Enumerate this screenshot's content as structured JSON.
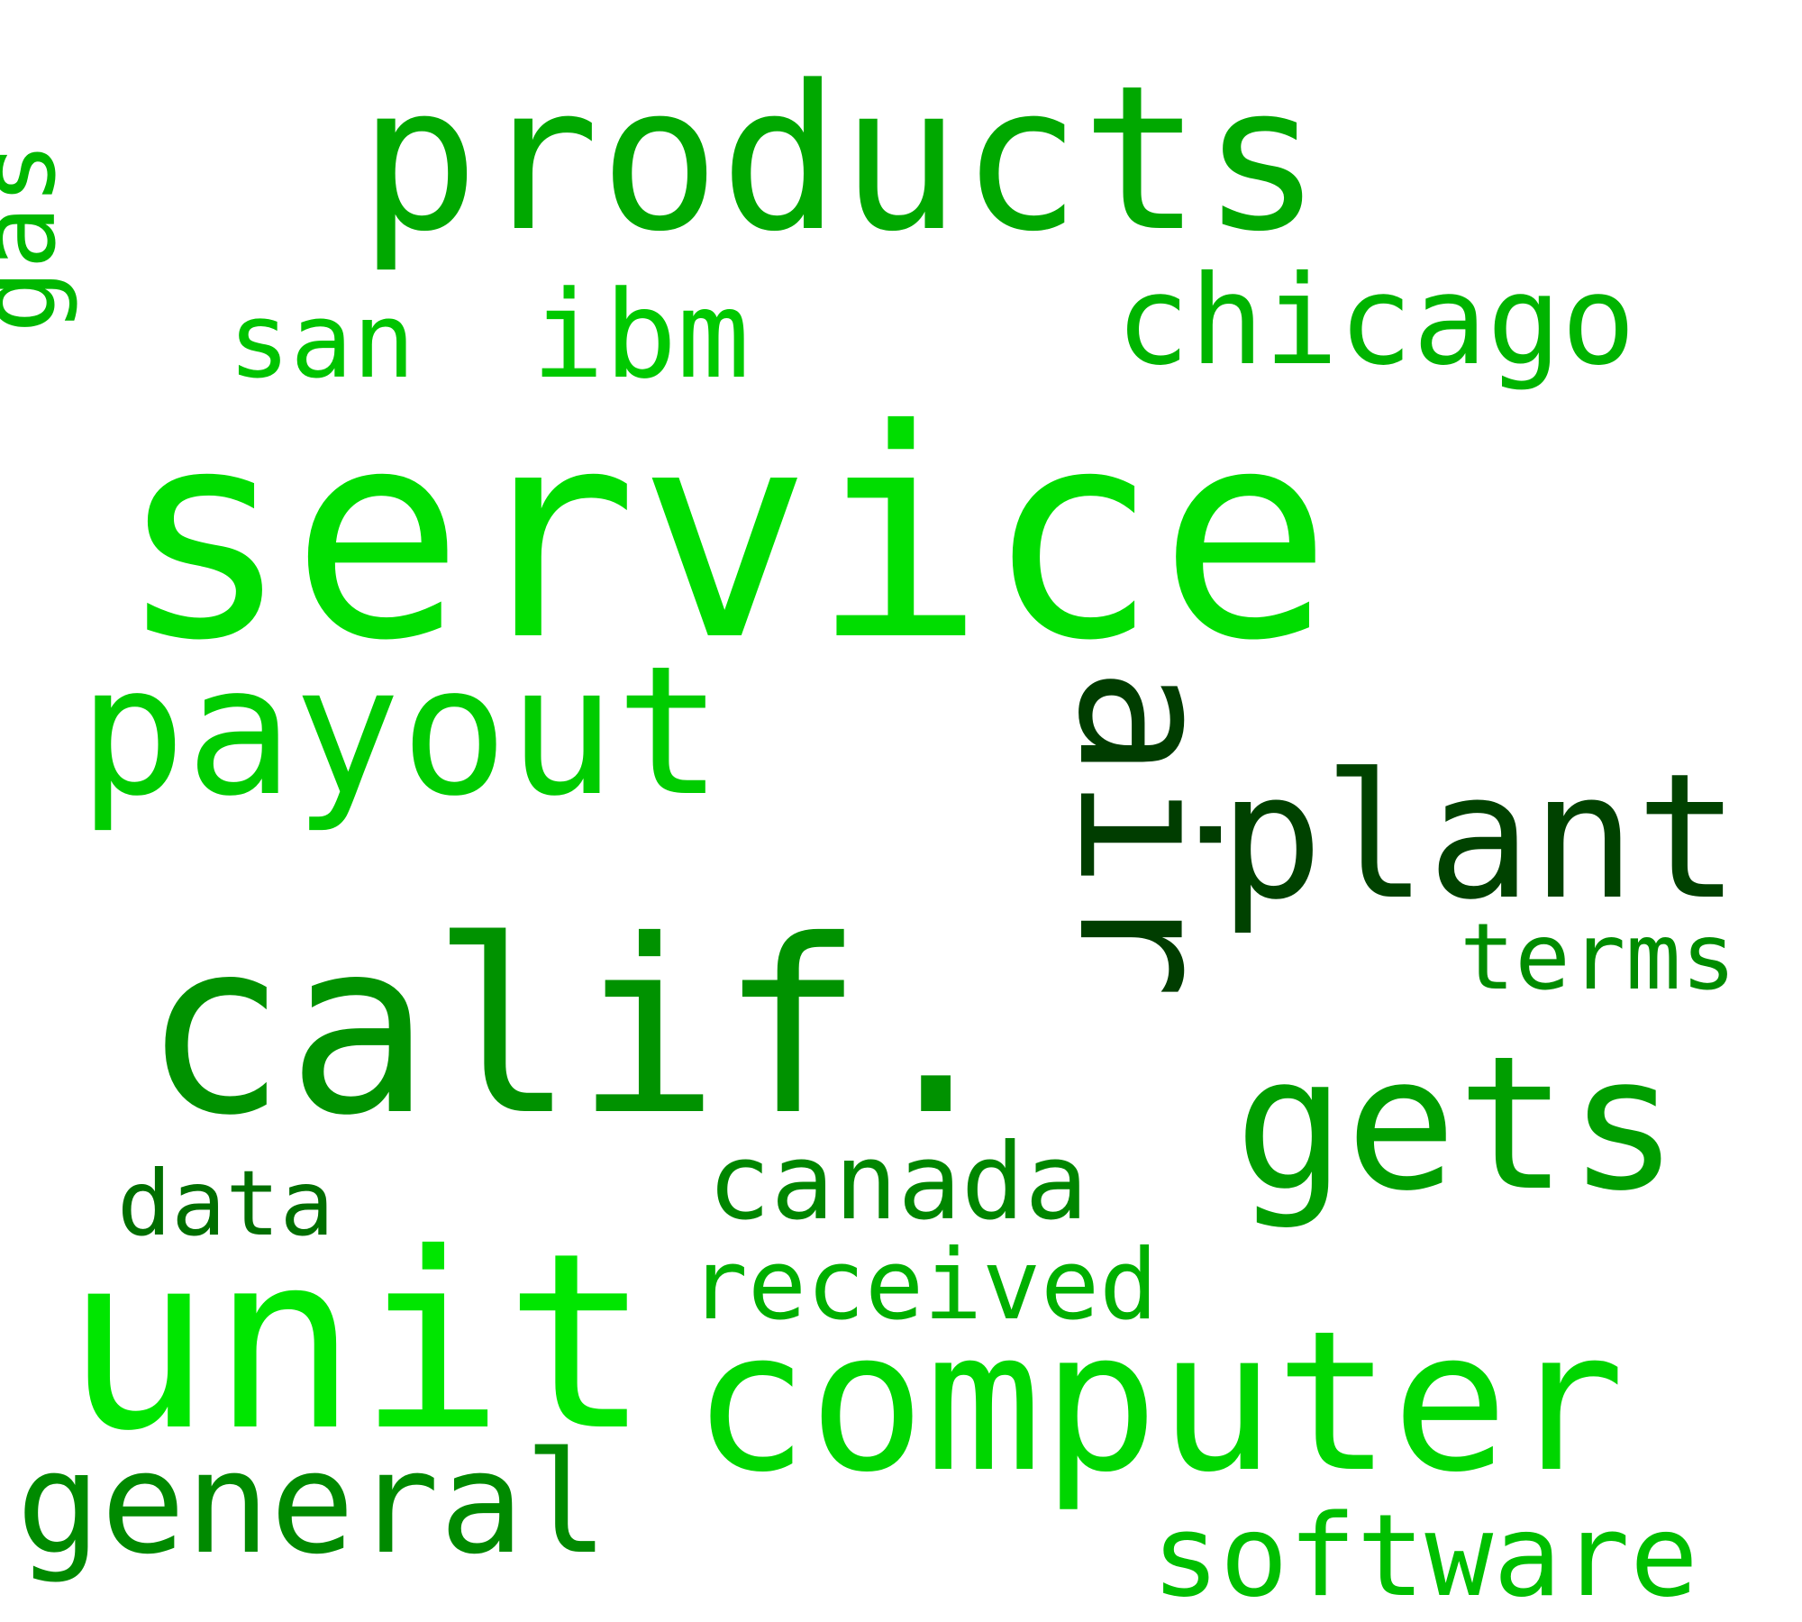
{
  "words": [
    {
      "key": "service",
      "text": "service",
      "color": "#00dd00"
    },
    {
      "key": "products",
      "text": "products",
      "color": "#00a800"
    },
    {
      "key": "calif",
      "text": "calif.",
      "color": "#009200"
    },
    {
      "key": "unit",
      "text": "unit",
      "color": "#00e600"
    },
    {
      "key": "computer",
      "text": "computer",
      "color": "#00d600"
    },
    {
      "key": "payout",
      "text": "payout",
      "color": "#00cc00"
    },
    {
      "key": "plant",
      "text": "plant",
      "color": "#004200"
    },
    {
      "key": "air",
      "text": "air",
      "color": "#003d00"
    },
    {
      "key": "gets",
      "text": "gets",
      "color": "#009e00"
    },
    {
      "key": "chicago",
      "text": "chicago",
      "color": "#00b400"
    },
    {
      "key": "ibm",
      "text": "ibm",
      "color": "#00c900"
    },
    {
      "key": "san",
      "text": "san",
      "color": "#00c400"
    },
    {
      "key": "gas",
      "text": "gas",
      "color": "#00b800"
    },
    {
      "key": "terms",
      "text": "terms",
      "color": "#008c00"
    },
    {
      "key": "canada",
      "text": "canada",
      "color": "#008600"
    },
    {
      "key": "data",
      "text": "data",
      "color": "#006f00"
    },
    {
      "key": "received",
      "text": "received",
      "color": "#00b000"
    },
    {
      "key": "general",
      "text": "general",
      "color": "#008a00"
    },
    {
      "key": "software",
      "text": "software",
      "color": "#00bf00"
    }
  ]
}
